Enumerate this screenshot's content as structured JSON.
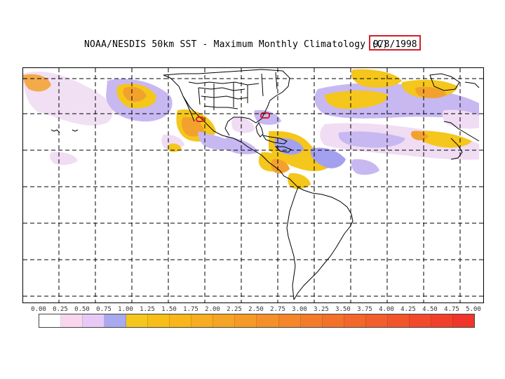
{
  "title": {
    "text": "NOAA/NESDIS 50km SST - Maximum Monthly Climatology (C)",
    "date": "9/8/1998"
  },
  "legend": {
    "ticks": [
      "0.00",
      "0.25",
      "0.50",
      "0.75",
      "1.00",
      "1.25",
      "1.50",
      "1.75",
      "2.00",
      "2.25",
      "2.50",
      "2.75",
      "3.00",
      "3.25",
      "3.50",
      "3.75",
      "4.00",
      "4.25",
      "4.50",
      "4.75",
      "5.00"
    ],
    "colors": [
      "#ffffff",
      "#f8d6ee",
      "#e7c9f5",
      "#a9a9f0",
      "#f5c61b",
      "#f7bd18",
      "#f8b61a",
      "#f7ac22",
      "#f6a425",
      "#f69a27",
      "#f59028",
      "#f5862a",
      "#f47b2a",
      "#f4712a",
      "#f3672a",
      "#f35e2a",
      "#f2552a",
      "#f24a2a",
      "#f1402a",
      "#f0362a"
    ]
  },
  "colors": {
    "highlight_red": "#d41f2a",
    "lavender": "#c7b8f2",
    "light_pink": "#f0dcf3",
    "periwinkle": "#a3a1ef",
    "yellow": "#f5c61b",
    "orange": "#f3a12d"
  }
}
